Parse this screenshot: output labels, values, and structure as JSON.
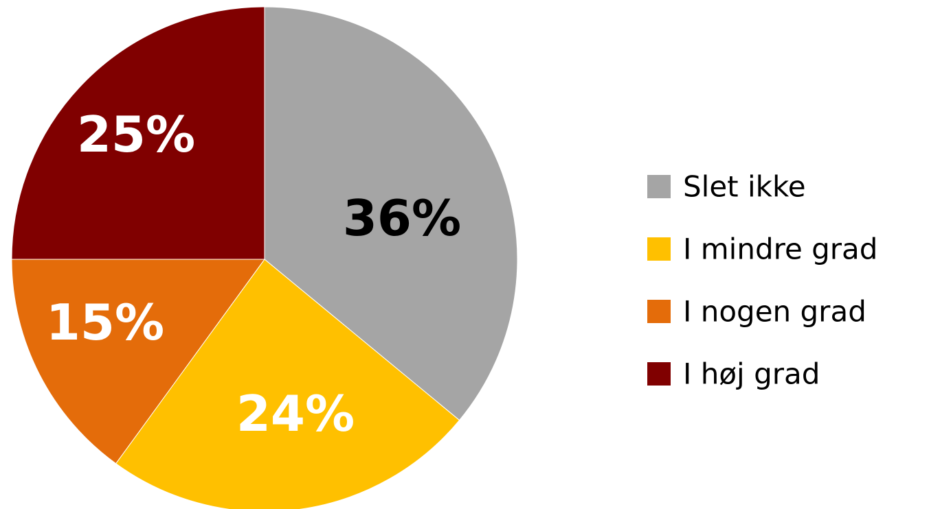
{
  "chart_data": {
    "type": "pie",
    "title": "",
    "slices": [
      {
        "label": "Slet ikke",
        "value": 36,
        "display": "36%",
        "color": "#A5A5A5",
        "text_color": "#000000"
      },
      {
        "label": "I mindre grad",
        "value": 24,
        "display": "24%",
        "color": "#FFC000",
        "text_color": "#FFFFFF"
      },
      {
        "label": "I nogen grad",
        "value": 15,
        "display": "15%",
        "color": "#E46C0A",
        "text_color": "#FFFFFF"
      },
      {
        "label": "I høj grad",
        "value": 25,
        "display": "25%",
        "color": "#800000",
        "text_color": "#FFFFFF"
      }
    ],
    "start_angle": "12 o'clock",
    "direction": "clockwise",
    "legend_position": "right"
  }
}
